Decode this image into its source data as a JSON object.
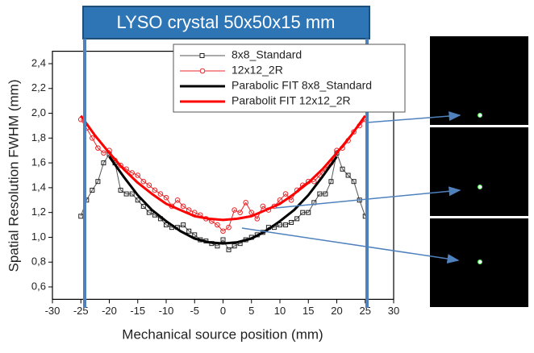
{
  "chart_data": {
    "type": "line",
    "title": "LYSO crystal 50x50x15 mm",
    "x_label": "Mechanical source position (mm)",
    "y_label": "Spatial Resolution FWHM (mm)",
    "xlim": [
      -30,
      30
    ],
    "xticks": [
      -30,
      -25,
      -20,
      -15,
      -10,
      -5,
      0,
      5,
      10,
      15,
      20,
      25,
      30
    ],
    "ylim": [
      0.5,
      2.5
    ],
    "yticks": [
      {
        "value": 0.6,
        "label": "0,6"
      },
      {
        "value": 0.8,
        "label": "0,8"
      },
      {
        "value": 1.0,
        "label": "1,0"
      },
      {
        "value": 1.2,
        "label": "1,2"
      },
      {
        "value": 1.4,
        "label": "1,4"
      },
      {
        "value": 1.6,
        "label": "1,6"
      },
      {
        "value": 1.8,
        "label": "1,8"
      },
      {
        "value": 2.0,
        "label": "2,0"
      },
      {
        "value": 2.2,
        "label": "2,2"
      },
      {
        "value": 2.4,
        "label": "2,4"
      }
    ],
    "legend": "top-right",
    "series": [
      {
        "name": "8x8_Standard",
        "color": "#555555",
        "marker": "square",
        "line_width": 1,
        "x": [
          -25,
          -24,
          -23,
          -22,
          -21,
          -20,
          -19,
          -18,
          -17,
          -16,
          -15,
          -14,
          -13,
          -12,
          -11,
          -10,
          -9,
          -8,
          -7,
          -6,
          -5,
          -4,
          -3,
          -2,
          -1,
          0,
          1,
          2,
          3,
          4,
          5,
          6,
          7,
          8,
          9,
          10,
          11,
          12,
          13,
          14,
          15,
          16,
          17,
          18,
          19,
          20,
          21,
          22,
          23,
          24,
          25
        ],
        "values": [
          1.17,
          1.3,
          1.38,
          1.45,
          1.6,
          1.67,
          1.6,
          1.38,
          1.35,
          1.35,
          1.3,
          1.25,
          1.2,
          1.18,
          1.15,
          1.1,
          1.08,
          1.08,
          1.1,
          1.05,
          1.02,
          0.98,
          0.97,
          0.95,
          0.93,
          0.98,
          0.9,
          0.93,
          0.95,
          0.98,
          1.0,
          1.02,
          1.04,
          1.08,
          1.08,
          1.1,
          1.1,
          1.12,
          1.15,
          1.2,
          1.2,
          1.28,
          1.35,
          1.35,
          1.45,
          1.68,
          1.55,
          1.5,
          1.45,
          1.3,
          1.17
        ]
      },
      {
        "name": "12x12_2R",
        "color": "#e8262a",
        "marker": "circle",
        "line_width": 1,
        "x": [
          -25,
          -24,
          -23,
          -22,
          -21,
          -20,
          -19,
          -18,
          -17,
          -16,
          -15,
          -14,
          -13,
          -12,
          -11,
          -10,
          -9,
          -8,
          -7,
          -6,
          -5,
          -4,
          -3,
          -2,
          -1,
          0,
          1,
          2,
          3,
          4,
          5,
          6,
          7,
          8,
          9,
          10,
          11,
          12,
          13,
          14,
          15,
          16,
          17,
          18,
          19,
          20,
          21,
          22,
          23,
          24,
          25
        ],
        "values": [
          1.95,
          1.88,
          1.8,
          1.72,
          1.68,
          1.7,
          1.62,
          1.58,
          1.55,
          1.52,
          1.5,
          1.45,
          1.42,
          1.38,
          1.35,
          1.32,
          1.25,
          1.3,
          1.25,
          1.22,
          1.2,
          1.18,
          1.15,
          1.13,
          1.1,
          1.05,
          1.08,
          1.22,
          1.2,
          1.28,
          1.2,
          1.15,
          1.25,
          1.22,
          1.25,
          1.3,
          1.35,
          1.3,
          1.38,
          1.42,
          1.45,
          1.45,
          1.5,
          1.55,
          1.6,
          1.7,
          1.72,
          1.78,
          1.85,
          1.9,
          1.95
        ]
      },
      {
        "name": "Parabolic FIT 8x8_Standard",
        "color": "#000000",
        "marker": "none",
        "line_width": 3,
        "x": [
          -20,
          -17.5,
          -15,
          -12.5,
          -10,
          -7.5,
          -5,
          -2.5,
          0,
          2.5,
          5,
          7.5,
          10,
          12.5,
          15,
          17.5,
          20
        ],
        "values": [
          1.65,
          1.49,
          1.34,
          1.22,
          1.13,
          1.05,
          0.99,
          0.96,
          0.95,
          0.96,
          0.99,
          1.05,
          1.13,
          1.22,
          1.34,
          1.49,
          1.65
        ]
      },
      {
        "name": "Parabolit FIT 12x12_2R",
        "color": "#ff0000",
        "marker": "none",
        "line_width": 3,
        "x": [
          -25,
          -22.5,
          -20,
          -17.5,
          -15,
          -12.5,
          -10,
          -7.5,
          -5,
          -2.5,
          0,
          2.5,
          5,
          7.5,
          10,
          12.5,
          15,
          17.5,
          20,
          22.5,
          25
        ],
        "values": [
          1.98,
          1.82,
          1.68,
          1.55,
          1.44,
          1.35,
          1.27,
          1.22,
          1.17,
          1.15,
          1.14,
          1.15,
          1.17,
          1.22,
          1.27,
          1.35,
          1.44,
          1.55,
          1.68,
          1.82,
          1.98
        ]
      }
    ]
  }
}
